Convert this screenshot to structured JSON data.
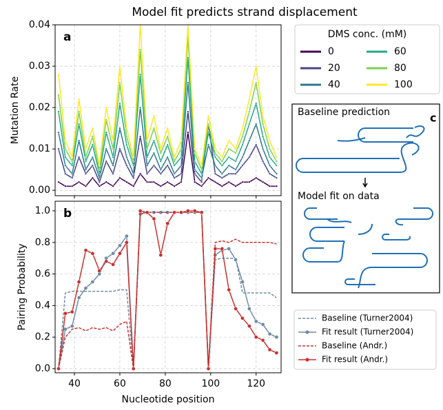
{
  "chart_data": [
    {
      "type": "line",
      "title": "Model fit predicts strand displacement",
      "panel_label": "a",
      "y_label": "Mutation Rate",
      "legend_title": "DMS conc. (mM)",
      "grid": true,
      "marker_size": 1.4,
      "x": [
        33,
        36,
        39,
        42,
        45,
        48,
        51,
        54,
        57,
        60,
        63,
        66,
        69,
        72,
        75,
        78,
        81,
        84,
        87,
        90,
        93,
        96,
        99,
        102,
        105,
        108,
        111,
        114,
        117,
        120,
        123,
        126,
        129
      ],
      "xlim": [
        31.5,
        131
      ],
      "xticks": [
        40,
        60,
        80,
        100,
        120
      ],
      "ylim": [
        -0.0013,
        0.04
      ],
      "yticks": [
        {
          "value": 0,
          "label": "0.00"
        },
        {
          "value": 0.01,
          "label": "0.01"
        },
        {
          "value": 0.02,
          "label": "0.02"
        },
        {
          "value": 0.03,
          "label": "0.03"
        },
        {
          "value": 0.04,
          "label": "0.04"
        }
      ],
      "series": [
        {
          "name": "0",
          "color": "#440154",
          "values": [
            0.002,
            0.001,
            0.001,
            0.002,
            0.001,
            0.003,
            0.001,
            0.002,
            0.001,
            0.003,
            0.002,
            0.001,
            0.004,
            0.002,
            0.002,
            0.001,
            0.002,
            0.001,
            0.002,
            0.014,
            0.002,
            0.001,
            0.003,
            0.002,
            0.001,
            0.002,
            0.001,
            0.002,
            0.002,
            0.003,
            0.002,
            0.001,
            0.001
          ]
        },
        {
          "name": "20",
          "color": "#414487",
          "values": [
            0.01,
            0.004,
            0.003,
            0.008,
            0.004,
            0.006,
            0.002,
            0.007,
            0.004,
            0.01,
            0.006,
            0.003,
            0.013,
            0.004,
            0.006,
            0.004,
            0.006,
            0.003,
            0.004,
            0.019,
            0.004,
            0.002,
            0.016,
            0.004,
            0.003,
            0.004,
            0.004,
            0.006,
            0.008,
            0.011,
            0.007,
            0.004,
            0.003
          ]
        },
        {
          "name": "40",
          "color": "#2a788e",
          "values": [
            0.014,
            0.006,
            0.004,
            0.012,
            0.005,
            0.008,
            0.003,
            0.01,
            0.006,
            0.015,
            0.008,
            0.004,
            0.02,
            0.006,
            0.009,
            0.005,
            0.008,
            0.004,
            0.006,
            0.026,
            0.005,
            0.003,
            0.011,
            0.006,
            0.004,
            0.006,
            0.005,
            0.008,
            0.012,
            0.016,
            0.01,
            0.006,
            0.004
          ]
        },
        {
          "name": "60",
          "color": "#22a884",
          "values": [
            0.019,
            0.008,
            0.006,
            0.016,
            0.007,
            0.011,
            0.004,
            0.014,
            0.008,
            0.021,
            0.011,
            0.006,
            0.028,
            0.008,
            0.012,
            0.007,
            0.011,
            0.006,
            0.008,
            0.032,
            0.007,
            0.004,
            0.014,
            0.008,
            0.006,
            0.008,
            0.007,
            0.011,
            0.016,
            0.021,
            0.013,
            0.008,
            0.006
          ]
        },
        {
          "name": "80",
          "color": "#7ad151",
          "values": [
            0.023,
            0.01,
            0.007,
            0.019,
            0.008,
            0.013,
            0.005,
            0.017,
            0.01,
            0.026,
            0.013,
            0.007,
            0.034,
            0.01,
            0.015,
            0.009,
            0.013,
            0.007,
            0.01,
            0.037,
            0.009,
            0.005,
            0.016,
            0.009,
            0.007,
            0.01,
            0.009,
            0.013,
            0.019,
            0.026,
            0.016,
            0.01,
            0.007
          ]
        },
        {
          "name": "100",
          "color": "#fde725",
          "values": [
            0.028,
            0.012,
            0.008,
            0.022,
            0.01,
            0.015,
            0.006,
            0.02,
            0.012,
            0.03,
            0.015,
            0.008,
            0.04,
            0.012,
            0.018,
            0.01,
            0.015,
            0.008,
            0.012,
            0.04,
            0.01,
            0.006,
            0.018,
            0.01,
            0.008,
            0.012,
            0.01,
            0.015,
            0.022,
            0.03,
            0.018,
            0.012,
            0.008
          ]
        }
      ]
    },
    {
      "type": "line",
      "panel_label": "b",
      "y_label": "Pairing Probability",
      "x_label": "Nucleotide position",
      "grid": true,
      "marker_size": 2.6,
      "x": [
        33,
        36,
        39,
        42,
        45,
        48,
        51,
        54,
        57,
        60,
        63,
        66,
        69,
        72,
        75,
        78,
        81,
        84,
        87,
        90,
        93,
        96,
        99,
        102,
        105,
        108,
        111,
        114,
        117,
        120,
        123,
        126,
        129
      ],
      "xlim": [
        31.5,
        131
      ],
      "xticks": [
        40,
        60,
        80,
        100,
        120
      ],
      "ylim": [
        -0.026,
        1.061
      ],
      "yticks": [
        {
          "value": 0,
          "label": "0.0"
        },
        {
          "value": 0.2,
          "label": "0.2"
        },
        {
          "value": 0.4,
          "label": "0.4"
        },
        {
          "value": 0.6,
          "label": "0.6"
        },
        {
          "value": 0.8,
          "label": "0.8"
        },
        {
          "value": 1,
          "label": "1.0"
        }
      ],
      "series": [
        {
          "name": "Baseline (Turner2004)",
          "color": "#6f8ba4",
          "dash": true,
          "marker": false,
          "values": [
            0,
            0.48,
            0.49,
            0.49,
            0.49,
            0.49,
            0.49,
            0.49,
            0.49,
            0.5,
            0.5,
            0,
            0.99,
            0.99,
            0.99,
            0.99,
            0.99,
            0.99,
            0.99,
            0.99,
            0.99,
            0.99,
            0,
            0.69,
            0.7,
            0.7,
            0.7,
            0.48,
            0.48,
            0.48,
            0.48,
            0.48,
            0.45
          ]
        },
        {
          "name": "Fit result (Turner2004)",
          "color": "#6f8ba4",
          "dash": false,
          "marker": true,
          "values": [
            0,
            0.25,
            0.27,
            0.45,
            0.51,
            0.55,
            0.6,
            0.7,
            0.73,
            0.78,
            0.84,
            0,
            0.98,
            0.99,
            0.99,
            0.99,
            0.99,
            0.99,
            0.99,
            0.99,
            0.99,
            0.99,
            0,
            0.72,
            0.75,
            0.76,
            0.69,
            0.55,
            0.38,
            0.3,
            0.28,
            0.22,
            0.2
          ]
        },
        {
          "name": "Baseline (Andr.)",
          "color": "#c8302e",
          "dash": true,
          "marker": false,
          "values": [
            0,
            0.2,
            0.25,
            0.26,
            0.24,
            0.26,
            0.25,
            0.26,
            0.24,
            0.28,
            0.3,
            0,
            0.98,
            0.99,
            0.99,
            0.99,
            0.99,
            0.99,
            0.99,
            0.99,
            0.99,
            0.99,
            0,
            0.8,
            0.81,
            0.8,
            0.82,
            0.8,
            0.8,
            0.8,
            0.8,
            0.8,
            0.79
          ]
        },
        {
          "name": "Fit result (Andr.)",
          "color": "#c8302e",
          "dash": false,
          "marker": true,
          "values": [
            0,
            0.35,
            0.36,
            0.55,
            0.75,
            0.73,
            0.62,
            0.68,
            0.66,
            0.73,
            0.8,
            0,
            1,
            0.99,
            0.95,
            0.72,
            0.92,
            0.99,
            0.99,
            1,
            1,
            0.99,
            0,
            0.76,
            0.76,
            0.5,
            0.38,
            0.32,
            0.27,
            0.2,
            0.18,
            0.12,
            0.1
          ]
        }
      ]
    }
  ],
  "panel_c": {
    "label": "c",
    "top_text": "Baseline prediction",
    "bottom_text": "Model fit on data"
  }
}
